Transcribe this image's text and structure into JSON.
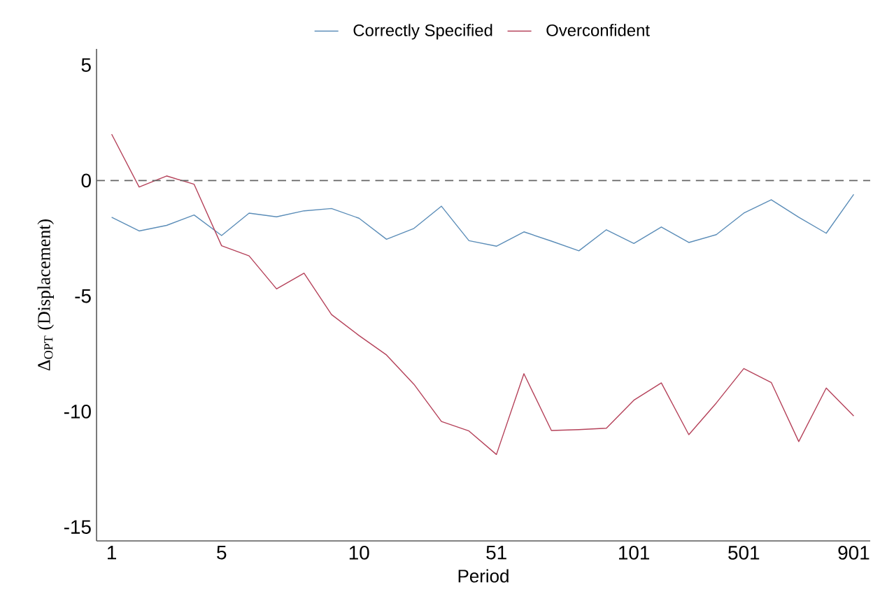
{
  "chart_data": {
    "type": "line",
    "xlabel": "Period",
    "ylabel": "Δ$_{OPT}$ (Displacement)",
    "categories": [
      "1",
      null,
      null,
      null,
      "5",
      null,
      null,
      null,
      null,
      "10",
      null,
      null,
      null,
      null,
      "51",
      null,
      null,
      null,
      null,
      "101",
      null,
      null,
      null,
      "501",
      null,
      null,
      null,
      "901"
    ],
    "series": [
      {
        "name": "Correctly Specified",
        "color": "#5b8db8",
        "values": [
          -1.59,
          -2.18,
          -1.94,
          -1.49,
          -2.38,
          -1.41,
          -1.57,
          -1.31,
          -1.21,
          -1.63,
          -2.54,
          -2.07,
          -1.11,
          -2.6,
          -2.84,
          -2.22,
          -2.62,
          -3.04,
          -2.13,
          -2.72,
          -2.01,
          -2.68,
          -2.34,
          -1.41,
          -0.83,
          -1.59,
          -2.28,
          -0.6
        ]
      },
      {
        "name": "Overconfident",
        "color": "#b5425a",
        "values": [
          2.01,
          -0.28,
          0.2,
          -0.16,
          -2.82,
          -3.26,
          -4.69,
          -4.01,
          -5.8,
          -6.71,
          -7.55,
          -8.82,
          -10.43,
          -10.84,
          -11.86,
          -8.36,
          -10.82,
          -10.78,
          -10.72,
          -9.51,
          -8.76,
          -11.0,
          -9.63,
          -8.14,
          -8.74,
          -11.3,
          -8.98,
          -10.19
        ]
      }
    ],
    "ylim": [
      -15.6,
      5.7
    ],
    "yticks": [
      -15,
      -10,
      -5,
      0,
      5
    ],
    "ref_lines": [
      {
        "axis": "y",
        "value": 0,
        "color": "#666666",
        "line_style": "dashed"
      }
    ],
    "legend": "top",
    "grid": false,
    "marker": "none",
    "line_style": "solid"
  }
}
